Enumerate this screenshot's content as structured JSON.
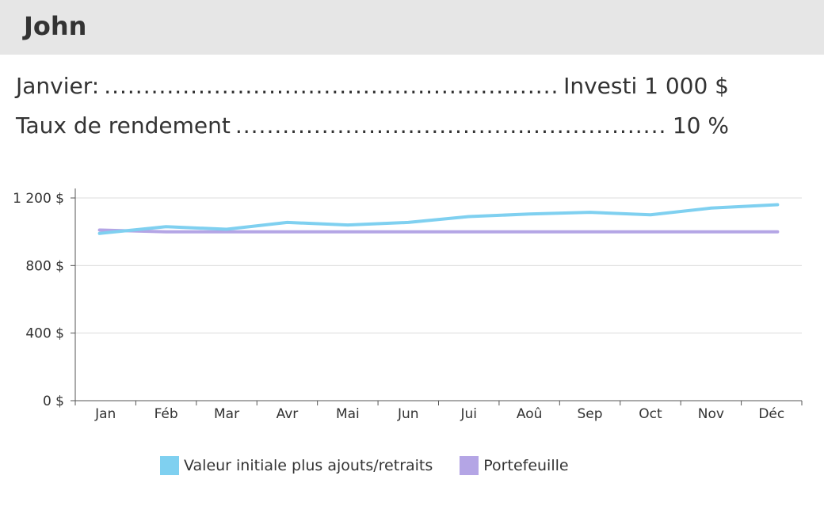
{
  "header": {
    "title": "John"
  },
  "info": [
    {
      "label": "Janvier:",
      "value": "Investi 1 000 $"
    },
    {
      "label": "Taux de rendement",
      "value": "10 %"
    }
  ],
  "chart_data": {
    "type": "line",
    "categories": [
      "Jan",
      "Féb",
      "Mar",
      "Avr",
      "Mai",
      "Jun",
      "Jui",
      "Aoû",
      "Sep",
      "Oct",
      "Nov",
      "Déc"
    ],
    "yticks": [
      "0 $",
      "400 $",
      "800 $",
      "1 200 $"
    ],
    "ylim": [
      0,
      1200
    ],
    "grid": true,
    "legend_position": "bottom",
    "series": [
      {
        "name": "Valeur initiale plus ajouts/retraits",
        "color": "#7fd0f0",
        "values": [
          990,
          1030,
          1015,
          1055,
          1040,
          1055,
          1090,
          1105,
          1115,
          1100,
          1140,
          1160
        ]
      },
      {
        "name": "Portefeuille",
        "color": "#b4a5e5",
        "values": [
          1010,
          1000,
          1000,
          1000,
          1000,
          1000,
          1000,
          1000,
          1000,
          1000,
          1000,
          1000
        ]
      }
    ]
  }
}
